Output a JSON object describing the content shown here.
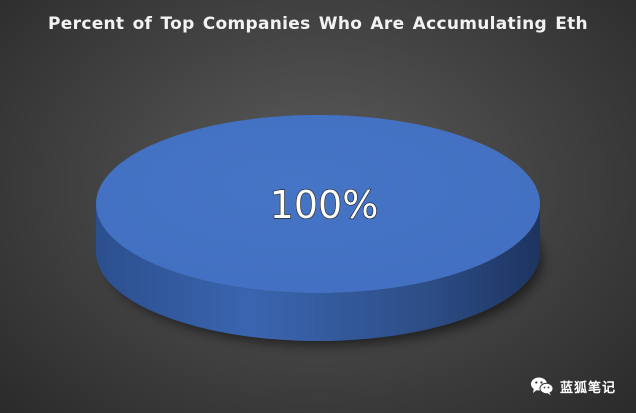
{
  "chart_data": {
    "type": "pie",
    "title": "Percent of Top Companies Who Are Accumulating Eth",
    "slices": [
      {
        "value": 100,
        "label": "100%",
        "color": "#4472c4"
      }
    ],
    "legend": "none",
    "style": "3d"
  },
  "watermark": {
    "text": "蓝狐笔记",
    "icon": "wechat-icon"
  }
}
